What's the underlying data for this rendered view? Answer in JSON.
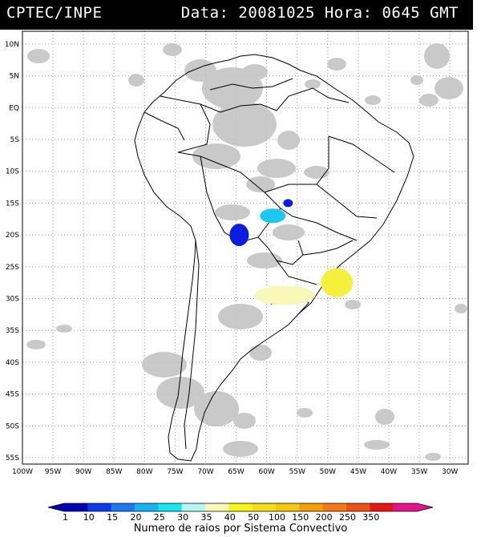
{
  "header": {
    "source": "CPTEC/INPE",
    "datetime": "Data: 20081025 Hora: 0645 GMT"
  },
  "map": {
    "lat_labels": [
      "10N",
      "5N",
      "EQ",
      "5S",
      "10S",
      "15S",
      "20S",
      "25S",
      "30S",
      "35S",
      "40S",
      "45S",
      "50S",
      "55S"
    ],
    "lon_labels": [
      "100W",
      "95W",
      "90W",
      "85W",
      "80W",
      "75W",
      "70W",
      "65W",
      "60W",
      "55W",
      "50W",
      "45W",
      "40W",
      "35W",
      "30W"
    ],
    "lat_range": [
      -56,
      12
    ],
    "lon_range": [
      -100,
      -27
    ],
    "grid": "dotted",
    "colors": {
      "cloud": "#c4c4c4",
      "border": "#000000",
      "grid": "#9a9a9a"
    }
  },
  "lightning_systems": [
    {
      "name": "bolivia-paraguay",
      "lat": -20.0,
      "lon": -64.5,
      "category": 1,
      "color": "#0a1ee0"
    },
    {
      "name": "mato-grosso-west",
      "lat": -17.0,
      "lon": -59.0,
      "category": 25,
      "color": "#1ec8f0"
    },
    {
      "name": "mato-grosso-east",
      "lat": -15.0,
      "lon": -56.5,
      "category": 1,
      "color": "#0a1ee0"
    },
    {
      "name": "santa-catarina",
      "lat": -27.5,
      "lon": -48.5,
      "category": 40,
      "color": "#f5f03c"
    },
    {
      "name": "rio-grande-do-sul",
      "lat": -29.5,
      "lon": -57.0,
      "category": 30,
      "color": "#f8f8b8"
    }
  ],
  "colorbar": {
    "labels": [
      "1",
      "10",
      "15",
      "20",
      "25",
      "30",
      "35",
      "40",
      "50",
      "100",
      "150",
      "200",
      "250",
      "350"
    ],
    "colors": [
      "#0000b4",
      "#0a3cf0",
      "#1e78f0",
      "#14b4f0",
      "#14e6f0",
      "#b4f5f5",
      "#fafab4",
      "#f5f514",
      "#f5dc14",
      "#f5c80a",
      "#f5a000",
      "#f57814",
      "#f05014",
      "#eb1414",
      "#e6148c"
    ],
    "caption": "Numero de raios por Sistema Convectivo"
  }
}
